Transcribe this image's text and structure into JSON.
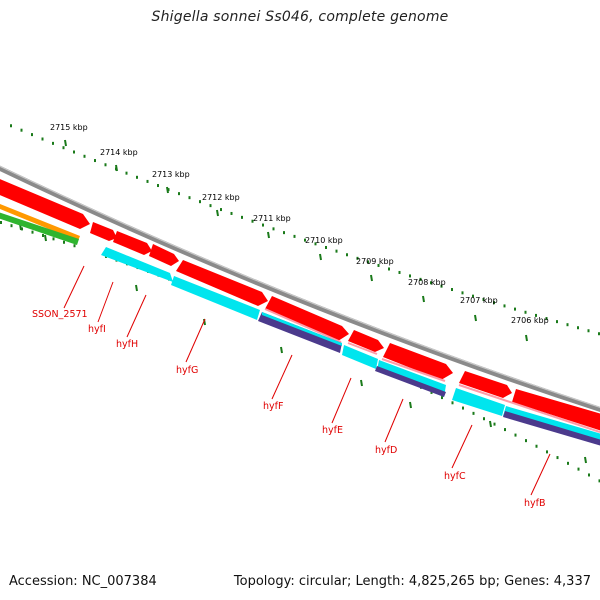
{
  "title": "Shigella sonnei Ss046, complete genome",
  "ruler": {
    "unit": "kbp",
    "ticks": [
      2715,
      2714,
      2713,
      2712,
      2711,
      2710,
      2709,
      2708,
      2707,
      2706
    ]
  },
  "genes": [
    "SSON_2571",
    "hyfI",
    "hyfH",
    "hyfG",
    "hyfF",
    "hyfE",
    "hyfD",
    "hyfC",
    "hyfB"
  ],
  "colors": {
    "backbone": "#8a8a8a",
    "cds": "#ff0000",
    "cds_shadow": "#c20000",
    "gc_content": "#00e5ee",
    "gc_skew": "#4b3a8c",
    "orange_track": "#ff9900",
    "green_track": "#2fb52f",
    "ruler": "#1a7a1a",
    "labels": "#e00000"
  },
  "footer": {
    "accession": "Accession: NC_007384",
    "summary": "Topology: circular; Length: 4,825,265 bp; Genes: 4,337"
  }
}
